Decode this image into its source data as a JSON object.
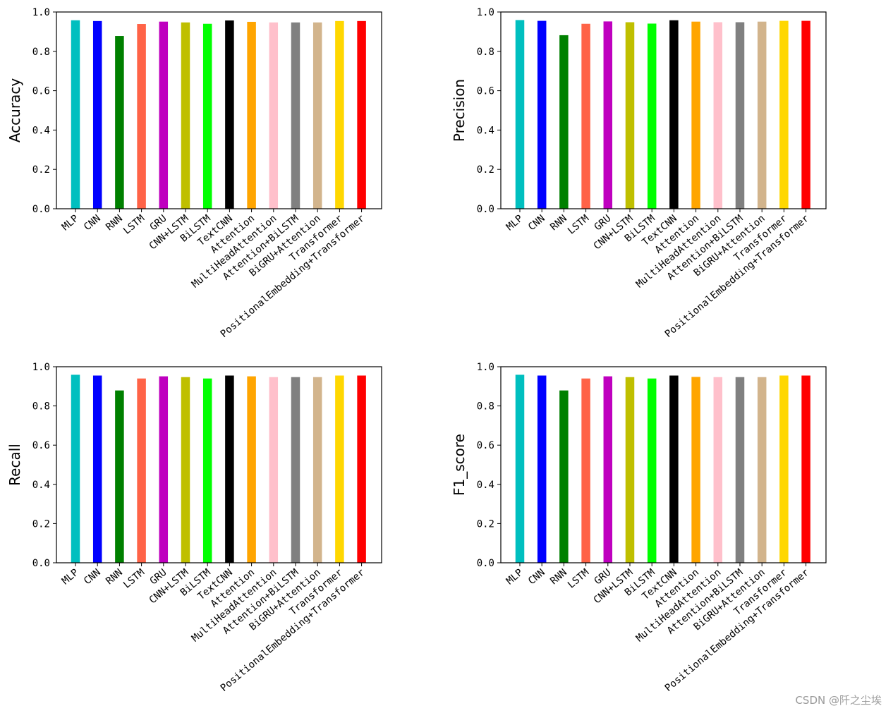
{
  "chart_data": [
    {
      "type": "bar",
      "title": "",
      "xlabel": "",
      "ylabel": "Accuracy",
      "ylim": [
        0,
        1.0
      ],
      "yticks": [
        "0.0",
        "0.2",
        "0.4",
        "0.6",
        "0.8",
        "1.0"
      ],
      "categories": [
        "MLP",
        "CNN",
        "RNN",
        "LSTM",
        "GRU",
        "CNN+LSTM",
        "BiLSTM",
        "TextCNN",
        "Attention",
        "MultiHeadAttention",
        "Attention+BiLSTM",
        "BiGRU+Attention",
        "Transformer",
        "PositionalEmbedding+Transformer"
      ],
      "values": [
        0.958,
        0.954,
        0.878,
        0.939,
        0.951,
        0.947,
        0.94,
        0.957,
        0.95,
        0.947,
        0.947,
        0.947,
        0.954,
        0.954
      ]
    },
    {
      "type": "bar",
      "title": "",
      "xlabel": "",
      "ylabel": "Precision",
      "ylim": [
        0,
        1.0
      ],
      "yticks": [
        "0.0",
        "0.2",
        "0.4",
        "0.6",
        "0.8",
        "1.0"
      ],
      "categories": [
        "MLP",
        "CNN",
        "RNN",
        "LSTM",
        "GRU",
        "CNN+LSTM",
        "BiLSTM",
        "TextCNN",
        "Attention",
        "MultiHeadAttention",
        "Attention+BiLSTM",
        "BiGRU+Attention",
        "Transformer",
        "PositionalEmbedding+Transformer"
      ],
      "values": [
        0.959,
        0.955,
        0.882,
        0.94,
        0.952,
        0.948,
        0.941,
        0.958,
        0.951,
        0.948,
        0.948,
        0.951,
        0.955,
        0.955
      ]
    },
    {
      "type": "bar",
      "title": "",
      "xlabel": "",
      "ylabel": "Recall",
      "ylim": [
        0,
        1.0
      ],
      "yticks": [
        "0.0",
        "0.2",
        "0.4",
        "0.6",
        "0.8",
        "1.0"
      ],
      "categories": [
        "MLP",
        "CNN",
        "RNN",
        "LSTM",
        "GRU",
        "CNN+LSTM",
        "BiLSTM",
        "TextCNN",
        "Attention",
        "MultiHeadAttention",
        "Attention+BiLSTM",
        "BiGRU+Attention",
        "Transformer",
        "PositionalEmbedding+Transformer"
      ],
      "values": [
        0.959,
        0.955,
        0.879,
        0.94,
        0.951,
        0.947,
        0.94,
        0.955,
        0.951,
        0.947,
        0.947,
        0.947,
        0.955,
        0.955
      ]
    },
    {
      "type": "bar",
      "title": "",
      "xlabel": "",
      "ylabel": "F1_score",
      "ylim": [
        0,
        1.0
      ],
      "yticks": [
        "0.0",
        "0.2",
        "0.4",
        "0.6",
        "0.8",
        "1.0"
      ],
      "categories": [
        "MLP",
        "CNN",
        "RNN",
        "LSTM",
        "GRU",
        "CNN+LSTM",
        "BiLSTM",
        "TextCNN",
        "Attention",
        "MultiHeadAttention",
        "Attention+BiLSTM",
        "BiGRU+Attention",
        "Transformer",
        "PositionalEmbedding+Transformer"
      ],
      "values": [
        0.959,
        0.955,
        0.879,
        0.94,
        0.951,
        0.947,
        0.94,
        0.955,
        0.948,
        0.947,
        0.947,
        0.947,
        0.955,
        0.955
      ]
    }
  ],
  "bar_colors": [
    "#00bfbf",
    "#0000ff",
    "#008000",
    "#ff6347",
    "#bf00bf",
    "#bfbf00",
    "#00ff00",
    "#000000",
    "#ffa500",
    "#ffc0cb",
    "#808080",
    "#d2b48c",
    "#ffd700",
    "#ff0000"
  ],
  "watermark": "CSDN @阡之尘埃"
}
